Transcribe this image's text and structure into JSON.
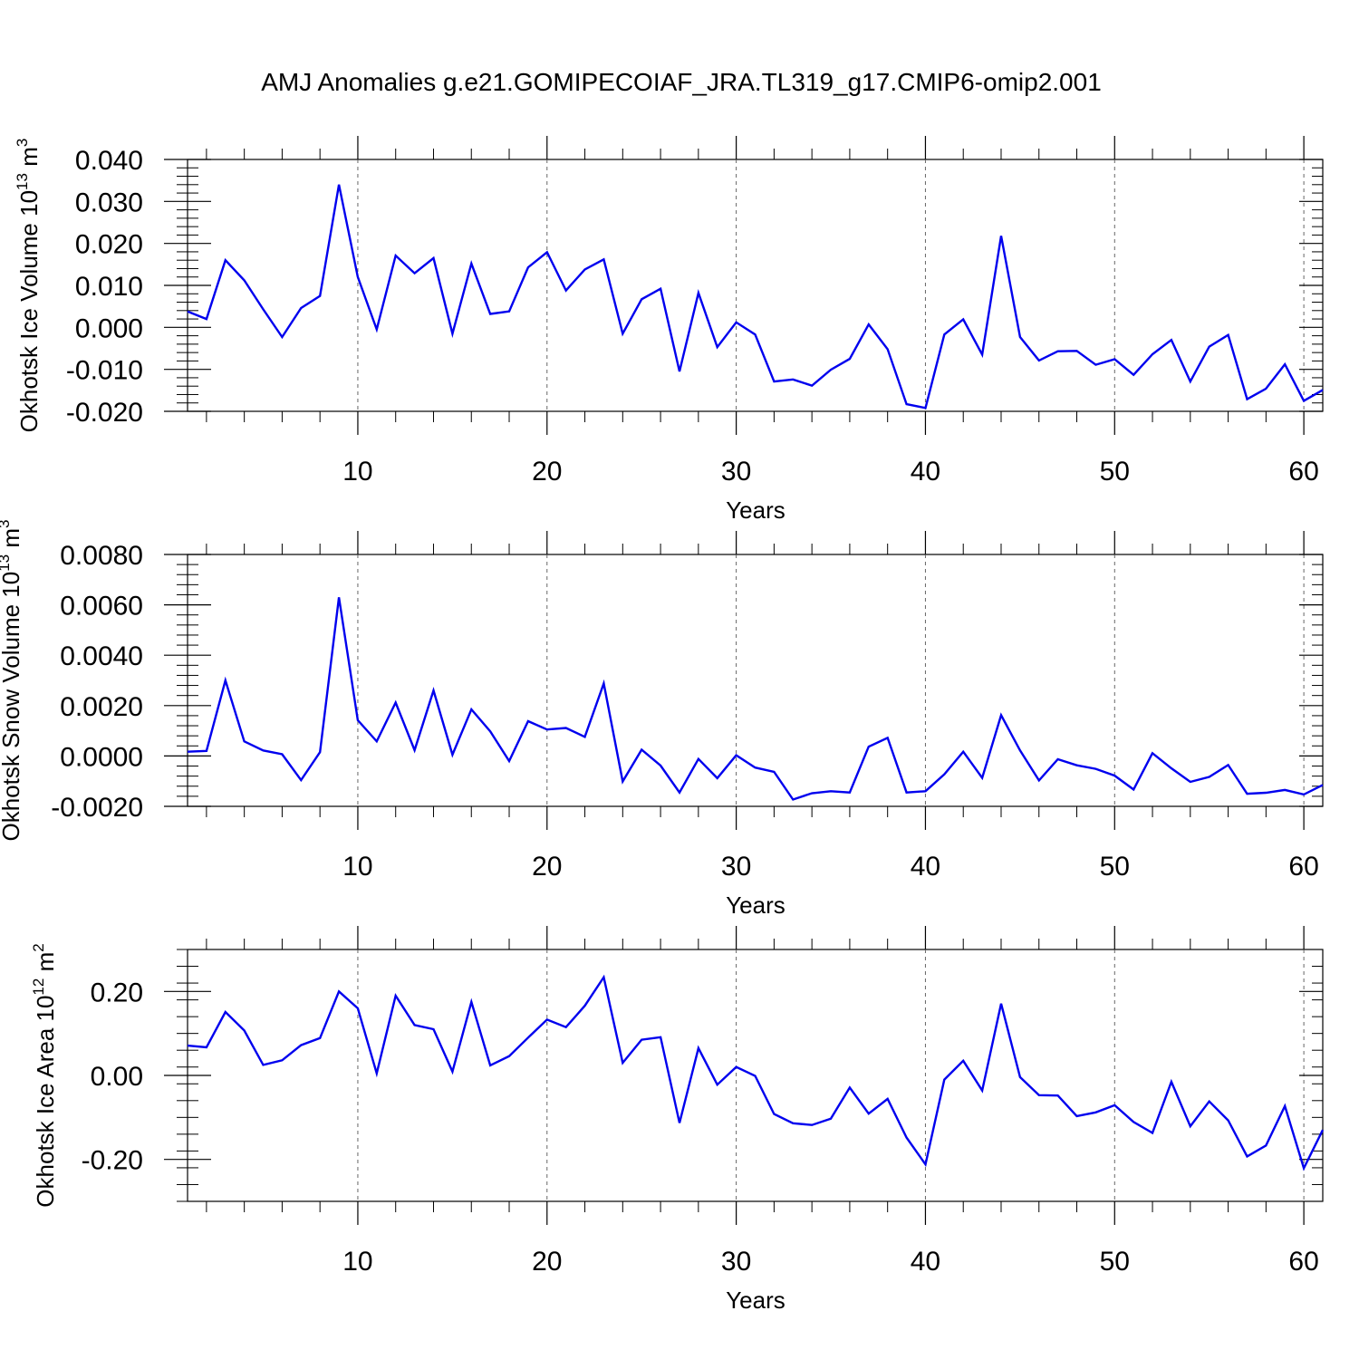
{
  "title": "AMJ Anomalies g.e21.GOMIPECOIAF_JRA.TL319_g17.CMIP6-omip2.001",
  "line_color": "#0000ee",
  "chart_data": [
    {
      "type": "line",
      "name": "ice-volume",
      "ylabel_main": "Okhotsk Ice Volume 10",
      "ylabel_exp": "13",
      "ylabel_unit": " m",
      "ylabel_unit_exp": "3",
      "xlabel": "Years",
      "xlim": [
        1,
        61
      ],
      "ylim": [
        -0.02,
        0.04
      ],
      "yticks": [
        -0.02,
        -0.01,
        0.0,
        0.01,
        0.02,
        0.03,
        0.04
      ],
      "ytick_labels": [
        "-0.020",
        "-0.010",
        "0.000",
        "0.010",
        "0.020",
        "0.030",
        "0.040"
      ],
      "xticks": [
        10,
        20,
        30,
        40,
        50,
        60
      ],
      "xtick_labels": [
        "10",
        "20",
        "30",
        "40",
        "50",
        "60"
      ],
      "values": [
        0.0038,
        0.002,
        0.016,
        0.0112,
        0.0043,
        -0.0023,
        0.0046,
        0.0075,
        0.034,
        0.012,
        -0.0005,
        0.0171,
        0.0129,
        0.0165,
        -0.0015,
        0.0152,
        0.0032,
        0.0038,
        0.0143,
        0.0179,
        0.0088,
        0.0138,
        0.0162,
        -0.0015,
        0.0067,
        0.0092,
        -0.0105,
        0.0082,
        -0.0047,
        0.0012,
        -0.0017,
        -0.0129,
        -0.0124,
        -0.0139,
        -0.0101,
        -0.0075,
        0.0007,
        -0.0052,
        -0.0183,
        -0.0192,
        -0.0017,
        0.0019,
        -0.0065,
        0.0218,
        -0.0023,
        -0.0079,
        -0.0057,
        -0.0056,
        -0.0089,
        -0.0076,
        -0.0113,
        -0.0064,
        -0.003,
        -0.0129,
        -0.0046,
        -0.0018,
        -0.0171,
        -0.0146,
        -0.0088,
        -0.0175,
        -0.0149
      ]
    },
    {
      "type": "line",
      "name": "snow-volume",
      "ylabel_main": "Okhotsk Snow Volume 10",
      "ylabel_exp": "13",
      "ylabel_unit": " m",
      "ylabel_unit_exp": "3",
      "xlabel": "Years",
      "xlim": [
        1,
        61
      ],
      "ylim": [
        -0.002,
        0.008
      ],
      "yticks": [
        -0.002,
        0.0,
        0.002,
        0.004,
        0.006,
        0.008
      ],
      "ytick_labels": [
        "-0.0020",
        "0.0000",
        "0.0020",
        "0.0040",
        "0.0060",
        "0.0080"
      ],
      "xticks": [
        10,
        20,
        30,
        40,
        50,
        60
      ],
      "xtick_labels": [
        "10",
        "20",
        "30",
        "40",
        "50",
        "60"
      ],
      "values": [
        0.00017,
        0.0002,
        0.003,
        0.00058,
        0.00022,
        7e-05,
        -0.00096,
        0.00015,
        0.0063,
        0.00142,
        0.00058,
        0.00212,
        0.00023,
        0.0026,
        5e-05,
        0.00185,
        0.00098,
        -0.0002,
        0.00138,
        0.00105,
        0.00111,
        0.00076,
        0.00288,
        -0.00101,
        0.00025,
        -0.00038,
        -0.00145,
        -0.00012,
        -0.00088,
        3e-05,
        -0.00046,
        -0.00063,
        -0.00173,
        -0.00148,
        -0.0014,
        -0.00145,
        0.00037,
        0.00072,
        -0.00145,
        -0.0014,
        -0.00073,
        0.00017,
        -0.00087,
        0.00162,
        0.00022,
        -0.00097,
        -0.00013,
        -0.00037,
        -0.00051,
        -0.00078,
        -0.00133,
        0.00011,
        -0.00049,
        -0.00103,
        -0.00083,
        -0.00036,
        -0.0015,
        -0.00146,
        -0.00135,
        -0.00153,
        -0.00115
      ]
    },
    {
      "type": "line",
      "name": "ice-area",
      "ylabel_main": "Okhotsk Ice Area 10",
      "ylabel_exp": "12",
      "ylabel_unit": " m",
      "ylabel_unit_exp": "2",
      "xlabel": "Years",
      "xlim": [
        1,
        61
      ],
      "ylim": [
        -0.3,
        0.3
      ],
      "yticks": [
        -0.2,
        0.0,
        0.2
      ],
      "ytick_labels": [
        "-0.20",
        "0.00",
        "0.20"
      ],
      "xticks": [
        10,
        20,
        30,
        40,
        50,
        60
      ],
      "xtick_labels": [
        "10",
        "20",
        "30",
        "40",
        "50",
        "60"
      ],
      "values": [
        0.071,
        0.067,
        0.151,
        0.107,
        0.025,
        0.036,
        0.072,
        0.089,
        0.2,
        0.16,
        0.005,
        0.19,
        0.12,
        0.11,
        0.009,
        0.175,
        0.024,
        0.046,
        0.09,
        0.133,
        0.115,
        0.166,
        0.234,
        0.03,
        0.085,
        0.091,
        -0.113,
        0.065,
        -0.022,
        0.02,
        -0.001,
        -0.092,
        -0.114,
        -0.118,
        -0.103,
        -0.029,
        -0.091,
        -0.056,
        -0.148,
        -0.212,
        -0.01,
        0.035,
        -0.036,
        0.171,
        -0.004,
        -0.047,
        -0.048,
        -0.097,
        -0.088,
        -0.071,
        -0.111,
        -0.137,
        -0.015,
        -0.121,
        -0.062,
        -0.107,
        -0.193,
        -0.167,
        -0.073,
        -0.221,
        -0.13
      ]
    }
  ]
}
